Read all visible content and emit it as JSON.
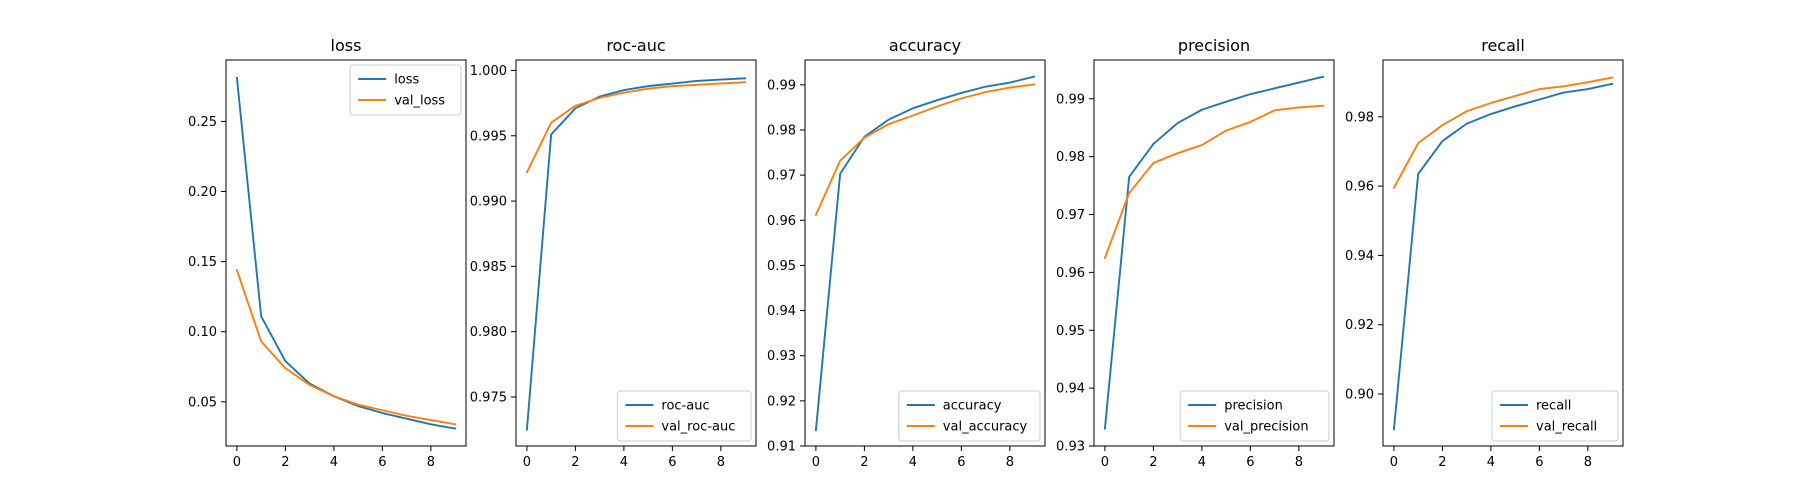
{
  "figure": {
    "background": "#ffffff",
    "series_colors": {
      "train": "#1f77b4",
      "val": "#ff7f0e"
    }
  },
  "chart_data": [
    {
      "type": "line",
      "title": "loss",
      "xlabel": "",
      "ylabel": "",
      "x": [
        0,
        1,
        2,
        3,
        4,
        5,
        6,
        7,
        8,
        9
      ],
      "xlim": [
        -0.45,
        9.45
      ],
      "ylim": [
        0.0185,
        0.2938
      ],
      "xticks": [
        0,
        2,
        4,
        6,
        8
      ],
      "xtick_labels": [
        "0",
        "2",
        "4",
        "6",
        "8"
      ],
      "yticks": [
        0.05,
        0.1,
        0.15,
        0.2,
        0.25
      ],
      "ytick_labels": [
        "0.05",
        "0.10",
        "0.15",
        "0.20",
        "0.25"
      ],
      "legend_position": "top-right",
      "grid": false,
      "series": [
        {
          "name": "loss",
          "color": "#1f77b4",
          "values": [
            0.281,
            0.111,
            0.079,
            0.063,
            0.054,
            0.047,
            0.042,
            0.038,
            0.034,
            0.031
          ]
        },
        {
          "name": "val_loss",
          "color": "#ff7f0e",
          "values": [
            0.144,
            0.093,
            0.074,
            0.062,
            0.054,
            0.048,
            0.044,
            0.04,
            0.037,
            0.034
          ]
        }
      ]
    },
    {
      "type": "line",
      "title": "roc-auc",
      "xlabel": "",
      "ylabel": "",
      "x": [
        0,
        1,
        2,
        3,
        4,
        5,
        6,
        7,
        8,
        9
      ],
      "xlim": [
        -0.45,
        9.45
      ],
      "ylim": [
        0.97125,
        1.0008
      ],
      "xticks": [
        0,
        2,
        4,
        6,
        8
      ],
      "xtick_labels": [
        "0",
        "2",
        "4",
        "6",
        "8"
      ],
      "yticks": [
        0.975,
        0.98,
        0.985,
        0.99,
        0.995,
        1.0
      ],
      "ytick_labels": [
        "0.975",
        "0.980",
        "0.985",
        "0.990",
        "0.995",
        "1.000"
      ],
      "legend_position": "bottom-right",
      "grid": false,
      "series": [
        {
          "name": "roc-auc",
          "color": "#1f77b4",
          "values": [
            0.9725,
            0.9951,
            0.9971,
            0.998,
            0.9985,
            0.9988,
            0.999,
            0.9992,
            0.9993,
            0.9994
          ]
        },
        {
          "name": "val_roc-auc",
          "color": "#ff7f0e",
          "values": [
            0.9922,
            0.996,
            0.9973,
            0.9979,
            0.9983,
            0.9986,
            0.9988,
            0.9989,
            0.999,
            0.9991
          ]
        }
      ]
    },
    {
      "type": "line",
      "title": "accuracy",
      "xlabel": "",
      "ylabel": "",
      "x": [
        0,
        1,
        2,
        3,
        4,
        5,
        6,
        7,
        8,
        9
      ],
      "xlim": [
        -0.45,
        9.45
      ],
      "ylim": [
        0.91,
        0.9955
      ],
      "xticks": [
        0,
        2,
        4,
        6,
        8
      ],
      "xtick_labels": [
        "0",
        "2",
        "4",
        "6",
        "8"
      ],
      "yticks": [
        0.91,
        0.92,
        0.93,
        0.94,
        0.95,
        0.96,
        0.97,
        0.98,
        0.99
      ],
      "ytick_labels": [
        "0.91",
        "0.92",
        "0.93",
        "0.94",
        "0.95",
        "0.96",
        "0.97",
        "0.98",
        "0.99"
      ],
      "legend_position": "bottom-right",
      "grid": false,
      "series": [
        {
          "name": "accuracy",
          "color": "#1f77b4",
          "values": [
            0.9135,
            0.9703,
            0.9785,
            0.9823,
            0.9848,
            0.9866,
            0.9882,
            0.9896,
            0.9905,
            0.9918
          ]
        },
        {
          "name": "val_accuracy",
          "color": "#ff7f0e",
          "values": [
            0.9612,
            0.9732,
            0.9783,
            0.9813,
            0.9832,
            0.9852,
            0.987,
            0.9884,
            0.9894,
            0.9901
          ]
        }
      ]
    },
    {
      "type": "line",
      "title": "precision",
      "xlabel": "",
      "ylabel": "",
      "x": [
        0,
        1,
        2,
        3,
        4,
        5,
        6,
        7,
        8,
        9
      ],
      "xlim": [
        -0.45,
        9.45
      ],
      "ylim": [
        0.93,
        0.9967
      ],
      "xticks": [
        0,
        2,
        4,
        6,
        8
      ],
      "xtick_labels": [
        "0",
        "2",
        "4",
        "6",
        "8"
      ],
      "yticks": [
        0.93,
        0.94,
        0.95,
        0.96,
        0.97,
        0.98,
        0.99
      ],
      "ytick_labels": [
        "0.93",
        "0.94",
        "0.95",
        "0.96",
        "0.97",
        "0.98",
        "0.99"
      ],
      "legend_position": "bottom-right",
      "grid": false,
      "series": [
        {
          "name": "precision",
          "color": "#1f77b4",
          "values": [
            0.933,
            0.9765,
            0.9822,
            0.9858,
            0.9881,
            0.9895,
            0.9908,
            0.9918,
            0.9928,
            0.9938
          ]
        },
        {
          "name": "val_precision",
          "color": "#ff7f0e",
          "values": [
            0.9625,
            0.9737,
            0.9789,
            0.9806,
            0.982,
            0.9845,
            0.986,
            0.988,
            0.9885,
            0.9888
          ]
        }
      ]
    },
    {
      "type": "line",
      "title": "recall",
      "xlabel": "",
      "ylabel": "",
      "x": [
        0,
        1,
        2,
        3,
        4,
        5,
        6,
        7,
        8,
        9
      ],
      "xlim": [
        -0.45,
        9.45
      ],
      "ylim": [
        0.885,
        0.9964
      ],
      "xticks": [
        0,
        2,
        4,
        6,
        8
      ],
      "xtick_labels": [
        "0",
        "2",
        "4",
        "6",
        "8"
      ],
      "yticks": [
        0.9,
        0.92,
        0.94,
        0.96,
        0.98
      ],
      "ytick_labels": [
        "0.90",
        "0.92",
        "0.94",
        "0.96",
        "0.98"
      ],
      "legend_position": "bottom-right",
      "grid": false,
      "series": [
        {
          "name": "recall",
          "color": "#1f77b4",
          "values": [
            0.8898,
            0.9635,
            0.973,
            0.978,
            0.9808,
            0.983,
            0.985,
            0.987,
            0.988,
            0.9895
          ]
        },
        {
          "name": "val_recall",
          "color": "#ff7f0e",
          "values": [
            0.9595,
            0.9724,
            0.9776,
            0.9816,
            0.984,
            0.986,
            0.988,
            0.9888,
            0.99,
            0.9913
          ]
        }
      ]
    }
  ]
}
